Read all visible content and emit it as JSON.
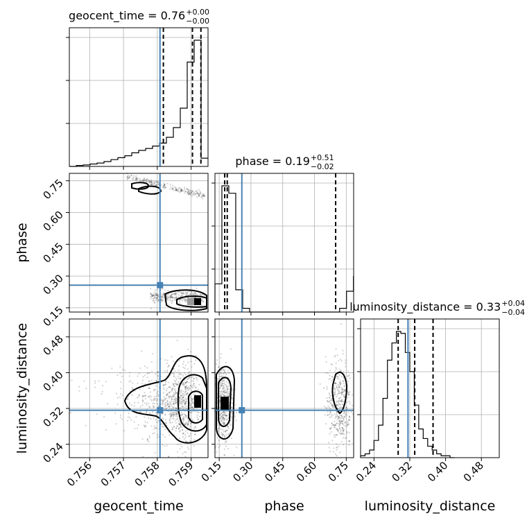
{
  "chart_data": {
    "type": "corner",
    "parameters": [
      {
        "key": "geocent_time",
        "label": "geocent_time",
        "range": [
          0.7554,
          0.7595
        ],
        "ticks": [
          0.756,
          0.757,
          0.758,
          0.759
        ],
        "tick_labels": [
          "0.756",
          "0.757",
          "0.758",
          "0.759"
        ],
        "truth": 0.75808
      },
      {
        "key": "phase",
        "label": "phase",
        "range": [
          0.13,
          0.785
        ],
        "ticks": [
          0.15,
          0.3,
          0.45,
          0.6,
          0.75
        ],
        "tick_labels": [
          "0.15",
          "0.30",
          "0.45",
          "0.60",
          "0.75"
        ],
        "truth": 0.257
      },
      {
        "key": "luminosity_distance",
        "label": "luminosity_distance",
        "range": [
          0.21,
          0.52
        ],
        "ticks": [
          0.24,
          0.32,
          0.4,
          0.48
        ],
        "tick_labels": [
          "0.24",
          "0.32",
          "0.40",
          "0.48"
        ],
        "truth": 0.316
      }
    ],
    "titles": [
      {
        "text": "geocent_time = 0.76",
        "sup": "+0.00",
        "sub": "−0.00"
      },
      {
        "text": "phase = 0.19",
        "sup": "+0.51",
        "sub": "−0.02"
      },
      {
        "text": "luminosity_distance = 0.33",
        "sup": "+0.04",
        "sub": "−0.04"
      }
    ],
    "histograms": [
      {
        "edges_start": 0.7554,
        "bin_width": 0.000205,
        "counts": [
          0,
          2,
          3,
          5,
          7,
          10,
          14,
          18,
          22,
          28,
          33,
          37,
          42,
          48,
          60,
          80,
          120,
          215,
          260,
          17
        ]
      },
      {
        "edges_start": 0.13,
        "bin_width": 0.0327,
        "counts": [
          38,
          170,
          160,
          30,
          5,
          0,
          0,
          0,
          0,
          0,
          0,
          0,
          0,
          0,
          0,
          0,
          0,
          0,
          5,
          28,
          48
        ]
      },
      {
        "edges_start": 0.21,
        "bin_width": 0.01,
        "counts": [
          2,
          4,
          8,
          18,
          34,
          62,
          102,
          120,
          132,
          130,
          110,
          90,
          55,
          30,
          20,
          12,
          8,
          4,
          2,
          2,
          0
        ]
      }
    ],
    "quantile_lines": [
      [
        0.75818,
        0.75904,
        0.75929
      ],
      [
        0.176,
        0.188,
        0.7
      ],
      [
        0.294,
        0.331,
        0.372
      ]
    ],
    "scatter_clusters": {
      "geocent_time_vs_phase": [
        {
          "n": 220,
          "x": [
            0.7571,
            0.7594
          ],
          "y_start": 0.77,
          "y_end": 0.68,
          "jitter": 0.012
        },
        {
          "n": 300,
          "x": [
            0.7578,
            0.7594
          ],
          "y": 0.2,
          "jitter": 0.025
        }
      ],
      "geocent_time_vs_luminosity_distance": [
        {
          "n": 900,
          "x_center": 0.7589,
          "x_sd": 0.0005,
          "y_center": 0.33,
          "y_sd": 0.045
        }
      ],
      "phase_vs_luminosity_distance": [
        {
          "n": 450,
          "x_center": 0.17,
          "x_sd": 0.022,
          "y_center": 0.33,
          "y_sd": 0.045
        },
        {
          "n": 420,
          "x_center": 0.715,
          "x_sd": 0.03,
          "y_center": 0.33,
          "y_sd": 0.05
        }
      ]
    },
    "grid": true,
    "truth_color": "#4682b4"
  }
}
